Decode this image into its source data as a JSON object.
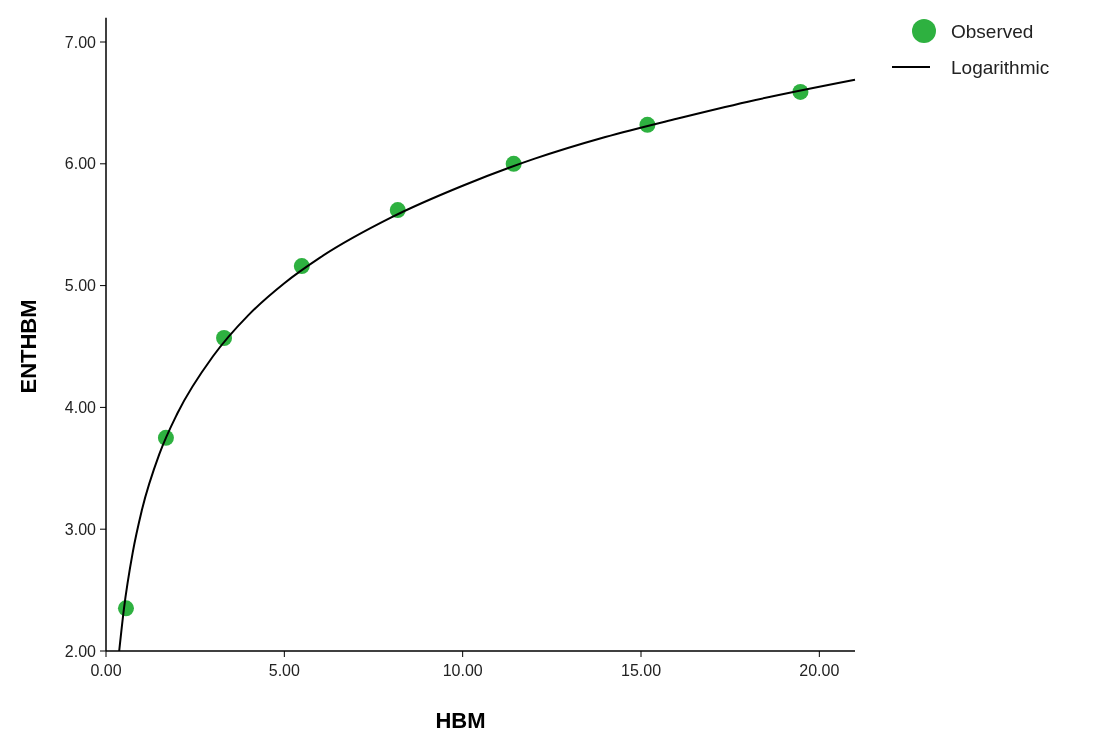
{
  "chart_data": {
    "type": "scatter",
    "xlabel": "HBM",
    "ylabel": "ENTHBM",
    "xlim": [
      0,
      21
    ],
    "xticks": [
      {
        "value": 0,
        "label": "0.00"
      },
      {
        "value": 5,
        "label": "5.00"
      },
      {
        "value": 10,
        "label": "10.00"
      },
      {
        "value": 15,
        "label": "15.00"
      },
      {
        "value": 20,
        "label": "20.00"
      }
    ],
    "ylim": [
      2,
      7.2
    ],
    "yticks": [
      {
        "value": 2,
        "label": "2.00"
      },
      {
        "value": 3,
        "label": "3.00"
      },
      {
        "value": 4,
        "label": "4.00"
      },
      {
        "value": 5,
        "label": "5.00"
      },
      {
        "value": 6,
        "label": "6.00"
      },
      {
        "value": 7,
        "label": "7.00"
      }
    ],
    "grid": false,
    "legend": "top right",
    "series": [
      {
        "name": "Observed",
        "marker": "circle",
        "color": "#2eb140",
        "x": [
          0.56,
          1.68,
          3.31,
          5.49,
          8.18,
          11.43,
          15.18,
          19.47
        ],
        "values": [
          2.35,
          3.75,
          4.57,
          5.16,
          5.62,
          6.0,
          6.32,
          6.59
        ]
      },
      {
        "name": "Logarithmic",
        "type": "line",
        "color": "#000000",
        "line_style": "solid",
        "x": [
          0.37,
          0.5,
          0.75,
          1,
          1.5,
          2,
          3,
          4,
          5,
          6,
          8,
          10,
          12,
          14,
          16,
          18,
          21
        ],
        "values": [
          2.0,
          2.34,
          2.81,
          3.15,
          3.62,
          3.95,
          4.42,
          4.76,
          5.02,
          5.23,
          5.56,
          5.82,
          6.04,
          6.22,
          6.37,
          6.51,
          6.69
        ]
      }
    ]
  }
}
